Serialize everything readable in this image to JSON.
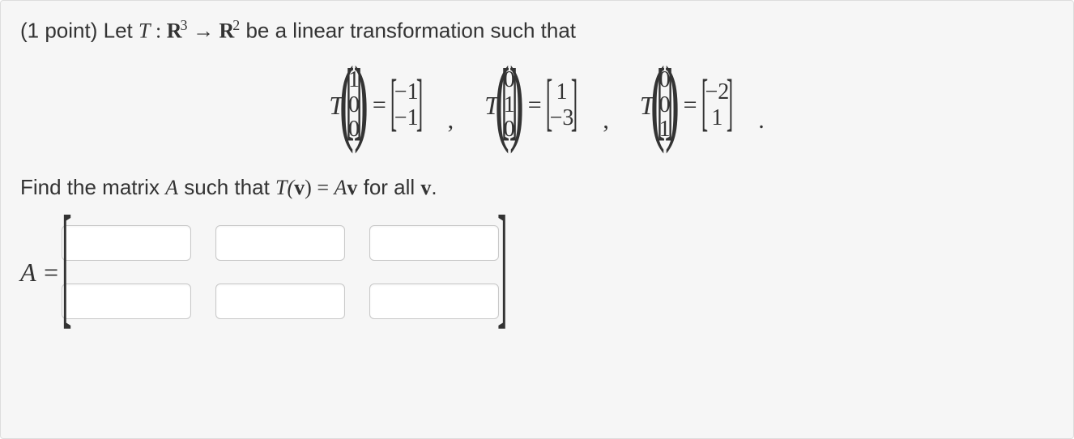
{
  "points_label": "(1 point) ",
  "intro_prefix": "Let ",
  "T_symbol": "T",
  "colon_space": " : ",
  "domain_R": "R",
  "domain_exp": "3",
  "arrow": " → ",
  "codomain_R": "R",
  "codomain_exp": "2",
  "intro_suffix": " be a linear transformation such that",
  "equations": [
    {
      "input": [
        "1",
        "0",
        "0"
      ],
      "output": [
        "−1",
        "−1"
      ]
    },
    {
      "input": [
        "0",
        "1",
        "0"
      ],
      "output": [
        "1",
        "−3"
      ]
    },
    {
      "input": [
        "0",
        "0",
        "1"
      ],
      "output": [
        "−2",
        "1"
      ]
    }
  ],
  "eq_sign": "=",
  "comma": ",",
  "dot": ".",
  "find_prefix": "Find the matrix ",
  "A_symbol": "A",
  "find_mid": " such that ",
  "Tparen": "T(",
  "v_symbol": "v",
  "closeparen": ")",
  "eqA": " = ",
  "Av_A": "A",
  "for_all": " for all ",
  "period": ".",
  "Aeq_label": "A =",
  "matrix": {
    "rows": 2,
    "cols": 3,
    "values": [
      [
        "",
        "",
        ""
      ],
      [
        "",
        "",
        ""
      ]
    ]
  },
  "colors": {
    "panel_bg": "#f6f6f6",
    "panel_border": "#dddddd",
    "text": "#333333",
    "input_border": "#c8c8c8",
    "input_bg": "#ffffff"
  }
}
